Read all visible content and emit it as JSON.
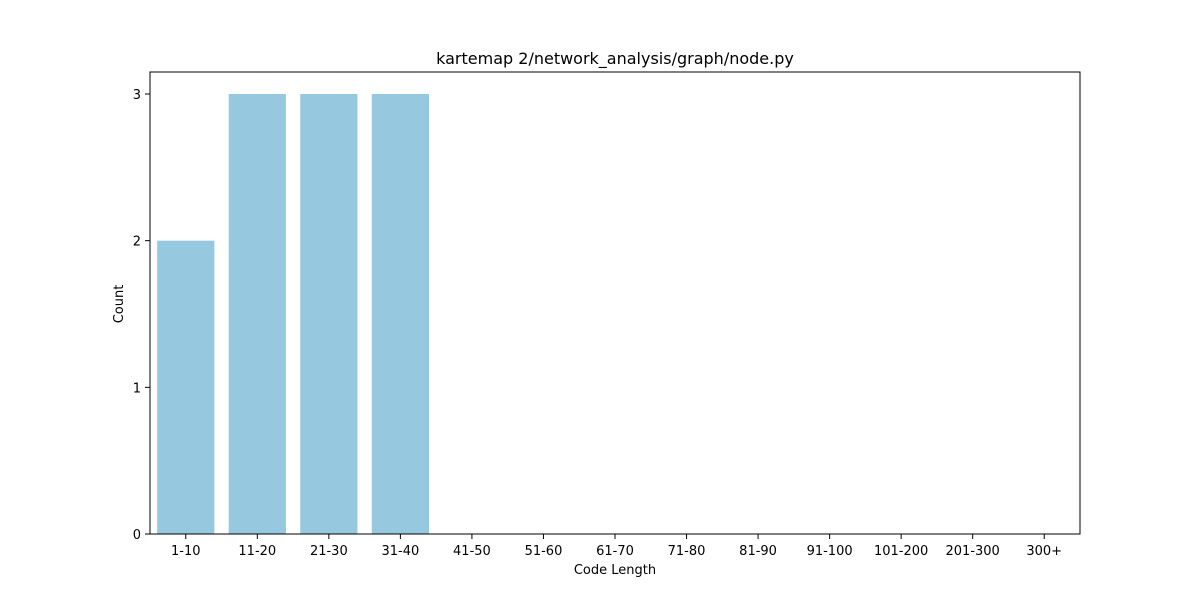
{
  "chart_data": {
    "type": "bar",
    "title": "kartemap 2/network_analysis/graph/node.py",
    "xlabel": "Code Length",
    "ylabel": "Count",
    "categories": [
      "1-10",
      "11-20",
      "21-30",
      "31-40",
      "41-50",
      "51-60",
      "61-70",
      "71-80",
      "81-90",
      "91-100",
      "101-200",
      "201-300",
      "300+"
    ],
    "values": [
      2,
      3,
      3,
      3,
      0,
      0,
      0,
      0,
      0,
      0,
      0,
      0,
      0
    ],
    "ylim": [
      0,
      3.15
    ],
    "yticks": [
      0,
      1,
      2,
      3
    ],
    "bar_color": "#96c9df",
    "grid": false,
    "legend": "none"
  }
}
